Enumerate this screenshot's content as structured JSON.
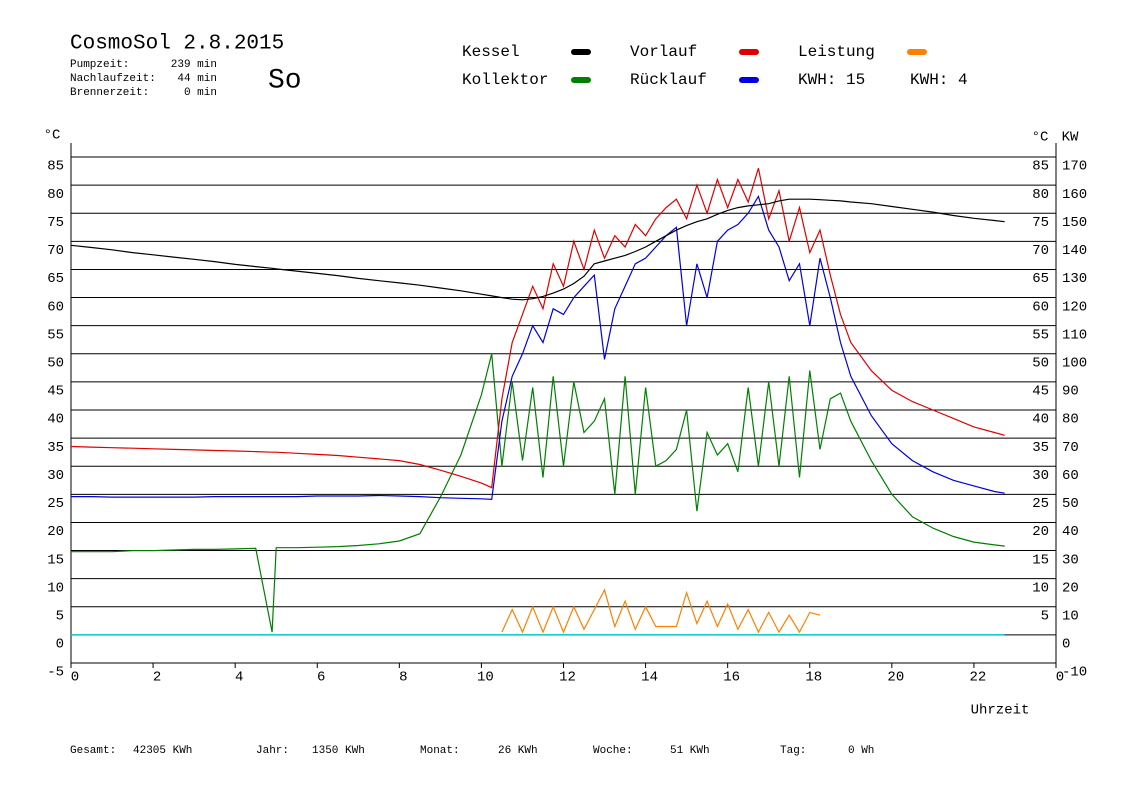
{
  "chart_data": {
    "type": "line",
    "title": "CosmoSol 2.8.2015",
    "weekday": "So",
    "weekday_color": "#e00000",
    "stats": [
      {
        "label": "Pumpzeit:",
        "value": "239 min"
      },
      {
        "label": "Nachlaufzeit:",
        "value": "44 min"
      },
      {
        "label": "Brennerzeit:",
        "value": "0 min"
      }
    ],
    "kwh_labels": [
      {
        "text": "KWH: 15",
        "color": "#ff8000"
      },
      {
        "text": "KWH: 4",
        "color": "#800080"
      }
    ],
    "y_unit": "°C",
    "y2_unit": "KW",
    "y2_color": "#e08000",
    "x_label": "Uhrzeit",
    "zero_line_color": "#00d0d0",
    "footer": [
      {
        "label": "Gesamt:",
        "value": "42305 KWh"
      },
      {
        "label": "Jahr:",
        "value": "1350 KWh"
      },
      {
        "label": "Monat:",
        "value": "26 KWh"
      },
      {
        "label": "Woche:",
        "value": "51 KWh"
      },
      {
        "label": "Tag:",
        "value": "0 Wh"
      }
    ],
    "xlim": [
      0,
      24
    ],
    "xticks": [
      0,
      2,
      4,
      6,
      8,
      10,
      12,
      14,
      16,
      18,
      20,
      22,
      {
        "value": 24,
        "label": "0"
      }
    ],
    "ylim": [
      -5,
      85
    ],
    "yticks": [
      -5,
      0,
      5,
      10,
      15,
      20,
      25,
      30,
      35,
      40,
      45,
      50,
      55,
      60,
      65,
      70,
      75,
      80,
      85
    ],
    "yticks_right": [
      5,
      10,
      15,
      20,
      25,
      30,
      35,
      40,
      45,
      50,
      55,
      60,
      65,
      70,
      75,
      80,
      85
    ],
    "y2lim": [
      -10,
      170
    ],
    "y2ticks": [
      -10,
      0,
      10,
      20,
      30,
      40,
      50,
      60,
      70,
      80,
      90,
      100,
      110,
      120,
      130,
      140,
      150,
      160,
      170
    ],
    "grid": true,
    "x": [
      0,
      0.5,
      1,
      1.5,
      2,
      2.5,
      3,
      3.5,
      4,
      4.5,
      4.9,
      5,
      5.5,
      6,
      6.5,
      7,
      7.5,
      8,
      8.5,
      9,
      9.5,
      10,
      10.25,
      10.5,
      10.75,
      11,
      11.25,
      11.5,
      11.75,
      12,
      12.25,
      12.5,
      12.75,
      13,
      13.25,
      13.5,
      13.75,
      14,
      14.25,
      14.5,
      14.75,
      15,
      15.25,
      15.5,
      15.75,
      16,
      16.25,
      16.5,
      16.75,
      17,
      17.25,
      17.5,
      17.75,
      18,
      18.25,
      18.5,
      18.75,
      19,
      19.5,
      20,
      20.5,
      21,
      21.5,
      22,
      22.5,
      22.75
    ],
    "series": [
      {
        "name": "Kessel",
        "color": "#000000",
        "values": [
          69.3,
          68.9,
          68.5,
          68,
          67.6,
          67.2,
          66.8,
          66.4,
          65.9,
          65.5,
          65.2,
          65.1,
          64.7,
          64.3,
          63.9,
          63.4,
          63,
          62.6,
          62.2,
          61.7,
          61.2,
          60.6,
          60.3,
          60,
          59.7,
          59.6,
          59.8,
          60.2,
          60.8,
          61.5,
          62.5,
          63.8,
          66,
          66.5,
          67,
          67.5,
          68.2,
          69,
          70,
          71,
          72,
          72.8,
          73.5,
          74,
          74.8,
          75.5,
          76,
          76.3,
          76.5,
          76.7,
          77.2,
          77.5,
          77.5,
          77.5,
          77.4,
          77.3,
          77.2,
          77,
          76.7,
          76.2,
          75.7,
          75.2,
          74.6,
          74.1,
          73.7,
          73.5
        ]
      },
      {
        "name": "Kollektor",
        "color": "#008000",
        "values": [
          14.8,
          14.8,
          14.8,
          15,
          15,
          15.1,
          15.2,
          15.2,
          15.3,
          15.4,
          0.5,
          15.5,
          15.5,
          15.6,
          15.7,
          15.9,
          16.2,
          16.7,
          18,
          24.5,
          32,
          42.7,
          50,
          30,
          45,
          31,
          44,
          28,
          46,
          30,
          45,
          36,
          38,
          42,
          25,
          46,
          25,
          44,
          30,
          31,
          33,
          40,
          22,
          36,
          32,
          34,
          29,
          44,
          30,
          45,
          30,
          46,
          28,
          47,
          33,
          42,
          43,
          38,
          31,
          25,
          21,
          19,
          17.5,
          16.5,
          16,
          15.8
        ]
      },
      {
        "name": "Vorlauf",
        "color": "#e00000",
        "values": [
          33.5,
          33.4,
          33.3,
          33.2,
          33.1,
          33,
          32.9,
          32.8,
          32.7,
          32.6,
          32.5,
          32.5,
          32.3,
          32.1,
          31.9,
          31.6,
          31.3,
          31,
          30.3,
          29.3,
          28.2,
          27,
          26.2,
          42,
          52,
          57,
          62,
          58,
          66,
          62,
          70,
          65,
          72,
          67,
          71,
          69,
          73,
          71,
          74,
          76,
          77.5,
          74,
          80,
          75,
          81,
          76,
          81,
          77,
          83,
          74,
          79,
          70,
          76,
          68,
          72,
          64,
          57,
          52,
          47,
          43.5,
          41.5,
          40,
          38.5,
          37,
          36,
          35.5
        ]
      },
      {
        "name": "Rücklauf",
        "color": "#0000e0",
        "values": [
          24.6,
          24.6,
          24.5,
          24.5,
          24.5,
          24.5,
          24.5,
          24.6,
          24.6,
          24.6,
          24.6,
          24.6,
          24.6,
          24.7,
          24.7,
          24.7,
          24.8,
          24.7,
          24.6,
          24.4,
          24.3,
          24.2,
          24.1,
          38,
          46,
          50,
          55,
          52,
          58,
          57,
          60,
          62,
          64,
          49,
          58,
          62,
          66,
          67,
          69,
          71,
          72.5,
          55,
          66,
          60,
          70,
          72,
          73,
          75,
          78,
          72,
          69,
          63,
          66,
          55,
          67,
          60,
          52,
          46,
          39,
          34,
          31,
          29,
          27.5,
          26.5,
          25.5,
          25.2
        ]
      },
      {
        "name": "Leistung",
        "color": "#ff8000",
        "axis": "y2",
        "values": [
          null,
          null,
          null,
          null,
          null,
          null,
          null,
          null,
          null,
          null,
          null,
          null,
          null,
          null,
          null,
          null,
          null,
          null,
          null,
          null,
          null,
          null,
          null,
          1,
          9,
          1,
          10,
          1,
          10,
          1,
          10,
          2,
          9,
          16,
          3,
          12,
          2,
          10,
          3,
          3,
          3,
          15,
          4,
          12,
          3,
          11,
          2,
          9,
          1,
          8,
          1,
          7,
          1,
          8,
          7,
          null,
          null,
          null,
          null,
          null,
          null,
          null,
          null,
          null,
          null,
          null
        ]
      }
    ]
  }
}
